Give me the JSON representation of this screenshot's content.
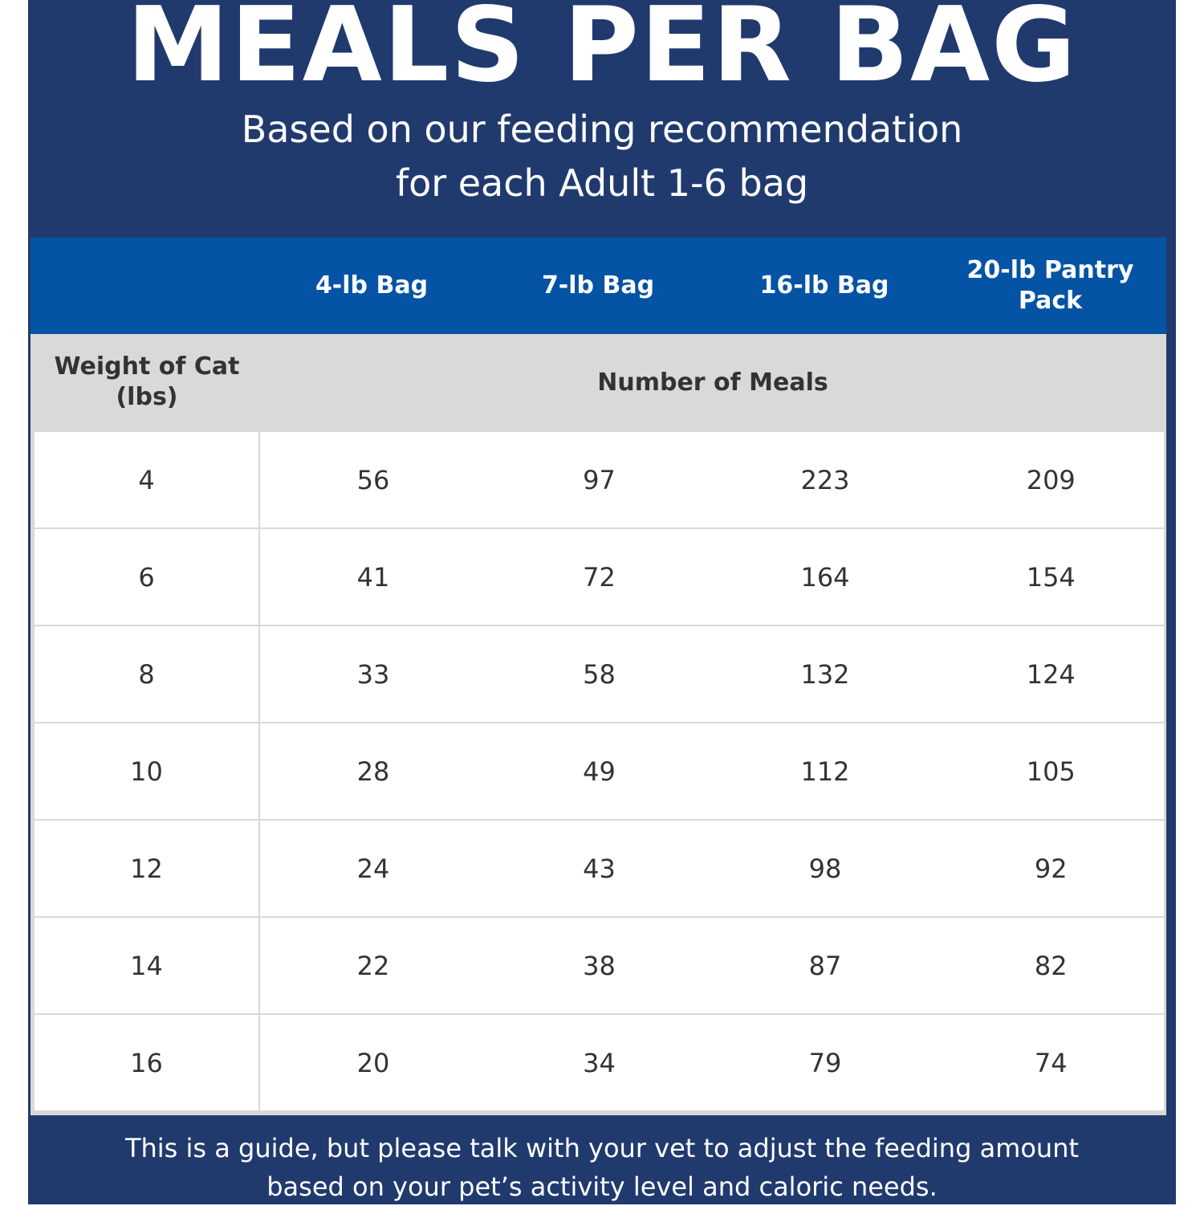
{
  "title": "MEALS PER BAG",
  "subtitle": [
    "Based on our feeding recommendation",
    "for each Adult 1-6 bag"
  ],
  "table": {
    "columns": [
      "",
      "4-lb Bag",
      "7-lb Bag",
      "16-lb Bag",
      "20-lb Pantry Pack"
    ],
    "row_header_label": "Weight of Cat (lbs)",
    "group_label": "Number of Meals",
    "rows": [
      [
        "4",
        "56",
        "97",
        "223",
        "209"
      ],
      [
        "6",
        "41",
        "72",
        "164",
        "154"
      ],
      [
        "8",
        "33",
        "58",
        "132",
        "124"
      ],
      [
        "10",
        "28",
        "49",
        "112",
        "105"
      ],
      [
        "12",
        "24",
        "43",
        "98",
        "92"
      ],
      [
        "14",
        "22",
        "38",
        "87",
        "82"
      ],
      [
        "16",
        "20",
        "34",
        "79",
        "74"
      ]
    ]
  },
  "footer": [
    "This is a guide, but please talk with your vet to adjust the feeding amount",
    "based on your pet’s activity level and caloric needs."
  ],
  "colors": {
    "navy": "#213a6e",
    "header_blue": "#0453a4",
    "band_gray": "#d9d9d9"
  }
}
